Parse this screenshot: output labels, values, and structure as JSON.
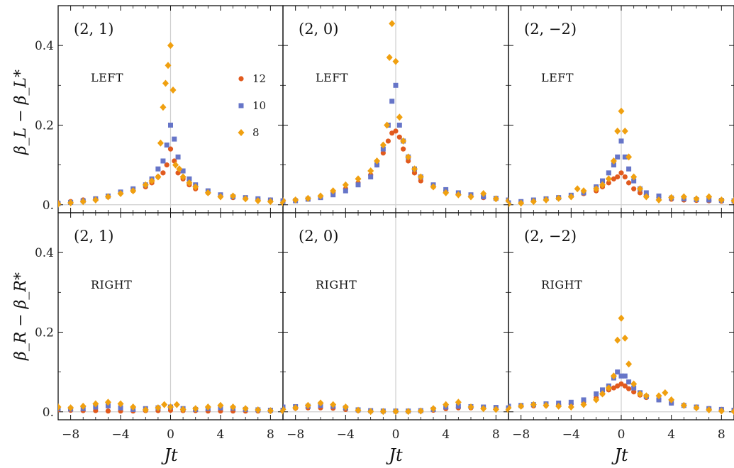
{
  "colors": {
    "n12": "#e15a1e",
    "n10": "#6675c8",
    "n8": "#f0a010"
  },
  "chart_data": {
    "type": "scatter",
    "layout": "2x3 grid of panels",
    "x_label": "Jt",
    "y_label_top": "β_L − β_L*",
    "y_label_bottom": "β_R − β_R*",
    "xlim": [
      -9,
      9
    ],
    "ylim": [
      -0.02,
      0.5
    ],
    "x_ticks": [
      "−8",
      "−4",
      "0",
      "4",
      "8"
    ],
    "x_tick_values": [
      -8,
      -4,
      0,
      4,
      8
    ],
    "y_ticks": [
      "0.",
      "0.2",
      "0.4"
    ],
    "y_tick_values": [
      0,
      0.2,
      0.4
    ],
    "legend": {
      "location": "upper-right of first panel",
      "entries": [
        "12",
        "10",
        "8"
      ],
      "markers": [
        "circle",
        "square",
        "diamond"
      ]
    },
    "panels": [
      {
        "id": "top-left",
        "label": "(2, 1)",
        "side": "LEFT",
        "series": [
          {
            "name": "12",
            "x": [
              -9,
              -8,
              -7,
              -6,
              -5,
              -4,
              -3,
              -2,
              -1.5,
              -1,
              -0.6,
              -0.3,
              0,
              0.3,
              0.6,
              1,
              1.5,
              2,
              3,
              4,
              5,
              6,
              7,
              8,
              9
            ],
            "y": [
              0.005,
              0.008,
              0.012,
              0.015,
              0.02,
              0.03,
              0.035,
              0.045,
              0.055,
              0.07,
              0.08,
              0.1,
              0.14,
              0.11,
              0.08,
              0.065,
              0.05,
              0.04,
              0.03,
              0.022,
              0.018,
              0.016,
              0.014,
              0.012,
              0.01
            ]
          },
          {
            "name": "10",
            "x": [
              -9,
              -8,
              -7,
              -6,
              -5,
              -4,
              -3,
              -2,
              -1.5,
              -1,
              -0.6,
              -0.3,
              0,
              0.3,
              0.6,
              1,
              1.5,
              2,
              3,
              4,
              5,
              6,
              7,
              8,
              9
            ],
            "y": [
              0.003,
              0.006,
              0.01,
              0.015,
              0.022,
              0.032,
              0.04,
              0.05,
              0.065,
              0.09,
              0.11,
              0.15,
              0.2,
              0.165,
              0.12,
              0.085,
              0.065,
              0.05,
              0.035,
              0.025,
              0.02,
              0.018,
              0.015,
              0.012,
              0.01
            ]
          },
          {
            "name": "8",
            "x": [
              -9,
              -8,
              -7,
              -6,
              -5,
              -4,
              -3,
              -2,
              -1.5,
              -1,
              -0.8,
              -0.6,
              -0.4,
              -0.2,
              0,
              0.2,
              0.4,
              0.7,
              1,
              1.5,
              2,
              3,
              4,
              5,
              6,
              7,
              8,
              9
            ],
            "y": [
              0.002,
              0.005,
              0.008,
              0.012,
              0.02,
              0.028,
              0.035,
              0.05,
              0.06,
              0.07,
              0.155,
              0.245,
              0.305,
              0.35,
              0.4,
              0.288,
              0.1,
              0.09,
              0.07,
              0.055,
              0.045,
              0.03,
              0.02,
              0.022,
              0.015,
              0.01,
              0.008,
              0.005
            ]
          }
        ]
      },
      {
        "id": "top-middle",
        "label": "(2, 0)",
        "side": "LEFT",
        "series": [
          {
            "name": "12",
            "x": [
              -9,
              -8,
              -7,
              -6,
              -5,
              -4,
              -3,
              -2,
              -1.5,
              -1,
              -0.6,
              -0.3,
              0,
              0.3,
              0.6,
              1,
              1.5,
              2,
              3,
              4,
              5,
              6,
              7,
              8,
              9
            ],
            "y": [
              0.01,
              0.012,
              0.015,
              0.02,
              0.03,
              0.04,
              0.055,
              0.075,
              0.1,
              0.13,
              0.16,
              0.18,
              0.185,
              0.17,
              0.14,
              0.11,
              0.08,
              0.06,
              0.045,
              0.035,
              0.028,
              0.022,
              0.018,
              0.015,
              0.012
            ]
          },
          {
            "name": "10",
            "x": [
              -9,
              -8,
              -7,
              -6,
              -5,
              -4,
              -3,
              -2,
              -1.5,
              -1,
              -0.6,
              -0.3,
              0,
              0.3,
              0.6,
              1,
              1.5,
              2,
              3,
              4,
              5,
              6,
              7,
              8,
              9
            ],
            "y": [
              0.008,
              0.01,
              0.014,
              0.018,
              0.025,
              0.035,
              0.05,
              0.07,
              0.1,
              0.14,
              0.2,
              0.26,
              0.3,
              0.2,
              0.16,
              0.12,
              0.09,
              0.07,
              0.05,
              0.038,
              0.03,
              0.025,
              0.02,
              0.016,
              0.012
            ]
          },
          {
            "name": "8",
            "x": [
              -9,
              -8,
              -7,
              -6,
              -5,
              -4,
              -3,
              -2,
              -1.5,
              -1,
              -0.7,
              -0.5,
              -0.3,
              0,
              0.3,
              0.6,
              1,
              1.5,
              2,
              3,
              4,
              5,
              6,
              7,
              8,
              9
            ],
            "y": [
              0.01,
              0.012,
              0.016,
              0.022,
              0.035,
              0.05,
              0.065,
              0.085,
              0.11,
              0.15,
              0.2,
              0.37,
              0.455,
              0.36,
              0.22,
              0.16,
              0.12,
              0.09,
              0.07,
              0.045,
              0.03,
              0.025,
              0.02,
              0.028,
              0.015,
              0.01
            ]
          }
        ]
      },
      {
        "id": "top-right",
        "label": "(2, −2)",
        "side": "LEFT",
        "series": [
          {
            "name": "12",
            "x": [
              -9,
              -8,
              -7,
              -6,
              -5,
              -4,
              -3,
              -2,
              -1.5,
              -1,
              -0.6,
              -0.3,
              0,
              0.3,
              0.6,
              1,
              1.5,
              2,
              3,
              4,
              5,
              6,
              7,
              8,
              9
            ],
            "y": [
              0.003,
              0.006,
              0.01,
              0.014,
              0.018,
              0.022,
              0.028,
              0.035,
              0.045,
              0.055,
              0.065,
              0.07,
              0.08,
              0.07,
              0.055,
              0.04,
              0.03,
              0.024,
              0.018,
              0.014,
              0.012,
              0.011,
              0.01,
              0.009,
              0.008
            ]
          },
          {
            "name": "10",
            "x": [
              -9,
              -8,
              -7,
              -6,
              -5,
              -4,
              -3,
              -2,
              -1.5,
              -1,
              -0.6,
              -0.3,
              0,
              0.3,
              0.6,
              1,
              1.5,
              2,
              3,
              4,
              5,
              6,
              7,
              8,
              9
            ],
            "y": [
              0.005,
              0.008,
              0.012,
              0.015,
              0.018,
              0.024,
              0.03,
              0.045,
              0.06,
              0.08,
              0.1,
              0.12,
              0.16,
              0.12,
              0.09,
              0.06,
              0.04,
              0.03,
              0.022,
              0.017,
              0.015,
              0.013,
              0.012,
              0.011,
              0.01
            ]
          },
          {
            "name": "8",
            "x": [
              -9,
              -8,
              -7,
              -6,
              -5,
              -4,
              -3.5,
              -3,
              -2,
              -1.5,
              -1,
              -0.6,
              -0.3,
              0,
              0.3,
              0.6,
              1,
              1.5,
              2,
              3,
              4,
              5,
              6,
              7,
              8,
              9
            ],
            "y": [
              0.002,
              0.004,
              0.008,
              0.012,
              0.016,
              0.02,
              0.04,
              0.035,
              0.04,
              0.05,
              0.065,
              0.11,
              0.185,
              0.235,
              0.185,
              0.12,
              0.07,
              0.04,
              0.02,
              0.012,
              0.018,
              0.02,
              0.015,
              0.02,
              0.012,
              0.01
            ]
          }
        ]
      },
      {
        "id": "bottom-left",
        "label": "(2, 1)",
        "side": "RIGHT",
        "series": [
          {
            "name": "12",
            "x": [
              -9,
              -8,
              -7,
              -6,
              -5,
              -4,
              -3,
              -2,
              -1,
              0,
              1,
              2,
              3,
              4,
              5,
              6,
              7,
              8,
              9
            ],
            "y": [
              0.005,
              0.004,
              0.003,
              0.003,
              0.002,
              0.002,
              0.002,
              0.003,
              0.003,
              0.004,
              0.003,
              0.003,
              0.002,
              0.002,
              0.002,
              0.002,
              0.002,
              0.002,
              0.002
            ]
          },
          {
            "name": "10",
            "x": [
              -9,
              -8,
              -7,
              -6,
              -5,
              -4,
              -3,
              -2,
              -1,
              0,
              1,
              2,
              3,
              4,
              5,
              6,
              7,
              8,
              9
            ],
            "y": [
              0.008,
              0.007,
              0.008,
              0.012,
              0.015,
              0.01,
              0.006,
              0.008,
              0.01,
              0.012,
              0.008,
              0.006,
              0.008,
              0.01,
              0.009,
              0.006,
              0.005,
              0.004,
              0.004
            ]
          },
          {
            "name": "8",
            "x": [
              -9,
              -8,
              -7,
              -6,
              -5,
              -4,
              -3,
              -2,
              -1,
              -0.5,
              0,
              0.5,
              1,
              2,
              3,
              4,
              5,
              6,
              7,
              8,
              9
            ],
            "y": [
              0.012,
              0.01,
              0.014,
              0.02,
              0.024,
              0.02,
              0.012,
              0.005,
              0.01,
              0.018,
              0.012,
              0.018,
              0.006,
              0.008,
              0.012,
              0.016,
              0.012,
              0.008,
              0.005,
              0.003,
              0.002
            ]
          }
        ]
      },
      {
        "id": "bottom-middle",
        "label": "(2, 0)",
        "side": "RIGHT",
        "series": [
          {
            "name": "12",
            "x": [
              -9,
              -8,
              -7,
              -6,
              -5,
              -4,
              -3,
              -2,
              -1,
              0,
              1,
              2,
              3,
              4,
              5,
              6,
              7,
              8,
              9
            ],
            "y": [
              0.008,
              0.009,
              0.01,
              0.01,
              0.009,
              0.006,
              0.003,
              0.002,
              0.001,
              0.001,
              0.001,
              0.002,
              0.004,
              0.008,
              0.01,
              0.01,
              0.009,
              0.008,
              0.008
            ]
          },
          {
            "name": "10",
            "x": [
              -9,
              -8,
              -7,
              -6,
              -5,
              -4,
              -3,
              -2,
              -1,
              0,
              1,
              2,
              3,
              4,
              5,
              6,
              7,
              8,
              9
            ],
            "y": [
              0.012,
              0.013,
              0.014,
              0.016,
              0.014,
              0.01,
              0.005,
              0.003,
              0.002,
              0.002,
              0.002,
              0.003,
              0.006,
              0.012,
              0.014,
              0.013,
              0.012,
              0.011,
              0.01
            ]
          },
          {
            "name": "8",
            "x": [
              -9,
              -8,
              -7,
              -6,
              -5,
              -4,
              -3,
              -2,
              -1,
              0,
              1,
              2,
              3,
              4,
              5,
              6,
              7,
              8,
              9
            ],
            "y": [
              0.006,
              0.01,
              0.016,
              0.022,
              0.018,
              0.012,
              0.004,
              0.001,
              0.001,
              0.001,
              0.001,
              0.002,
              0.008,
              0.018,
              0.024,
              0.012,
              0.008,
              0.006,
              0.005
            ]
          }
        ]
      },
      {
        "id": "bottom-right",
        "label": "(2, −2)",
        "side": "RIGHT",
        "series": [
          {
            "name": "12",
            "x": [
              -9,
              -8,
              -7,
              -6,
              -5,
              -4,
              -3,
              -2,
              -1.5,
              -1,
              -0.6,
              -0.3,
              0,
              0.3,
              0.6,
              1,
              1.5,
              2,
              3,
              4,
              5,
              6,
              7,
              8,
              9
            ],
            "y": [
              0.012,
              0.014,
              0.015,
              0.016,
              0.018,
              0.02,
              0.025,
              0.035,
              0.045,
              0.055,
              0.06,
              0.065,
              0.07,
              0.065,
              0.058,
              0.05,
              0.042,
              0.036,
              0.03,
              0.022,
              0.016,
              0.012,
              0.008,
              0.006,
              0.004
            ]
          },
          {
            "name": "10",
            "x": [
              -9,
              -8,
              -7,
              -6,
              -5,
              -4,
              -3,
              -2,
              -1.5,
              -1,
              -0.6,
              -0.3,
              0,
              0.3,
              0.6,
              1,
              1.5,
              2,
              3,
              4,
              5,
              6,
              7,
              8,
              9
            ],
            "y": [
              0.014,
              0.016,
              0.018,
              0.02,
              0.022,
              0.024,
              0.03,
              0.045,
              0.055,
              0.065,
              0.085,
              0.1,
              0.09,
              0.09,
              0.075,
              0.06,
              0.048,
              0.038,
              0.03,
              0.022,
              0.016,
              0.012,
              0.008,
              0.006,
              0.004
            ]
          },
          {
            "name": "8",
            "x": [
              -9,
              -8,
              -7,
              -6,
              -5,
              -4,
              -3,
              -2,
              -1.5,
              -1,
              -0.6,
              -0.3,
              0,
              0.3,
              0.6,
              1,
              1.5,
              2,
              3,
              3.5,
              4,
              5,
              6,
              7,
              8,
              9
            ],
            "y": [
              0.01,
              0.014,
              0.018,
              0.016,
              0.014,
              0.012,
              0.018,
              0.03,
              0.045,
              0.06,
              0.09,
              0.18,
              0.235,
              0.185,
              0.12,
              0.07,
              0.045,
              0.04,
              0.04,
              0.048,
              0.03,
              0.016,
              0.01,
              0.005,
              0.002,
              0.001
            ]
          }
        ]
      }
    ]
  }
}
